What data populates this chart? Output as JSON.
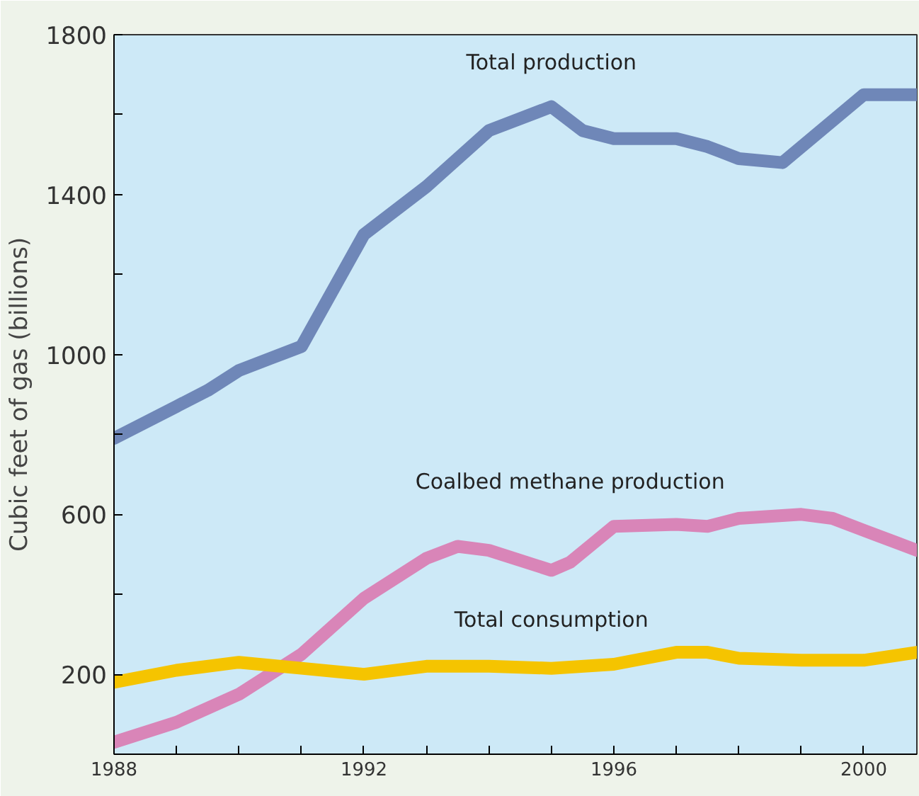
{
  "chart_data": {
    "type": "line",
    "ylabel": "Cubic feet of gas (billions)",
    "xlim": [
      1988,
      2000.85
    ],
    "ylim": [
      0,
      1800
    ],
    "xticks": [
      1988,
      {
        "value": 1989,
        "label": null
      },
      {
        "value": 1990,
        "label": null
      },
      {
        "value": 1991,
        "label": null
      },
      1992,
      {
        "value": 1993,
        "label": null
      },
      {
        "value": 1994,
        "label": null
      },
      {
        "value": 1995,
        "label": null
      },
      1996,
      {
        "value": 1997,
        "label": null
      },
      {
        "value": 1998,
        "label": null
      },
      {
        "value": 1999,
        "label": null
      },
      2000
    ],
    "yticks": [
      200,
      {
        "value": 400,
        "label": null
      },
      600,
      {
        "value": 800,
        "label": null
      },
      1000,
      {
        "value": 1200,
        "label": null
      },
      1400,
      {
        "value": 1600,
        "label": null
      },
      1800
    ],
    "grid": false,
    "legend": false,
    "series": [
      {
        "name": "Total production",
        "color": "#6f87b8",
        "x": [
          1988,
          1989,
          1989.5,
          1990,
          1990.5,
          1991,
          1992,
          1993,
          1994,
          1995,
          1995.5,
          1996,
          1997,
          1997.5,
          1998,
          1998.7,
          2000,
          2000.85
        ],
        "values": [
          790,
          870,
          910,
          960,
          990,
          1020,
          1300,
          1420,
          1560,
          1620,
          1560,
          1540,
          1540,
          1520,
          1490,
          1480,
          1650,
          1650
        ]
      },
      {
        "name": "Coalbed methane production",
        "color": "#d985b8",
        "x": [
          1988,
          1989,
          1990,
          1991,
          1992,
          1993,
          1993.5,
          1994,
          1995,
          1995.3,
          1996,
          1997,
          1997.5,
          1998,
          1999,
          1999.5,
          2000,
          2000.85
        ],
        "values": [
          30,
          80,
          150,
          250,
          390,
          490,
          520,
          510,
          460,
          480,
          570,
          575,
          570,
          590,
          600,
          590,
          560,
          510
        ]
      },
      {
        "name": "Total consumption",
        "color": "#f5c400",
        "x": [
          1988,
          1989,
          1990,
          1991,
          1992,
          1993,
          1994,
          1995,
          1996,
          1997,
          1997.5,
          1998,
          1999,
          2000,
          2000.85
        ],
        "values": [
          180,
          210,
          230,
          215,
          200,
          220,
          220,
          215,
          225,
          255,
          255,
          240,
          235,
          235,
          255
        ]
      }
    ]
  }
}
